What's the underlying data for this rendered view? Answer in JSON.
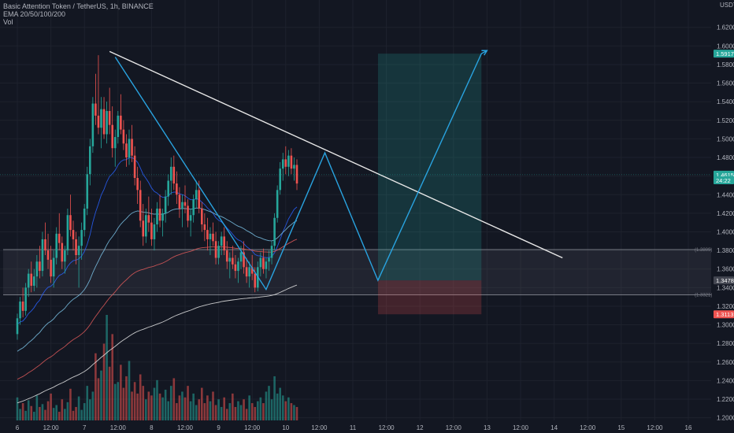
{
  "legend": {
    "symbol_line": "Basic Attention Token / TetherUS, 1h, BINANCE",
    "ema_line": "EMA 20/50/100/200",
    "vol_line": "Vol"
  },
  "chart_data": {
    "type": "candlestick",
    "currency_label": "USDT",
    "y_range": [
      1.1836,
      1.6494
    ],
    "y_ticks": [
      "1.6200",
      "1.6000",
      "1.5800",
      "1.5600",
      "1.5400",
      "1.5200",
      "1.5000",
      "1.4800",
      "1.4600",
      "1.4400",
      "1.4200",
      "1.4000",
      "1.3800",
      "1.3600",
      "1.3400",
      "1.3200",
      "1.3000",
      "1.2800",
      "1.2600",
      "1.2400",
      "1.2200",
      "1.2000"
    ],
    "x_ticks": [
      {
        "label": "6",
        "t": 0
      },
      {
        "label": "12:00",
        "t": 12
      },
      {
        "label": "7",
        "t": 24
      },
      {
        "label": "12:00",
        "t": 36
      },
      {
        "label": "8",
        "t": 48
      },
      {
        "label": "12:00",
        "t": 60
      },
      {
        "label": "9",
        "t": 72
      },
      {
        "label": "12:00",
        "t": 84
      },
      {
        "label": "10",
        "t": 96
      },
      {
        "label": "12:00",
        "t": 108
      },
      {
        "label": "11",
        "t": 120
      },
      {
        "label": "12:00",
        "t": 132
      },
      {
        "label": "12",
        "t": 144
      },
      {
        "label": "12:00",
        "t": 156
      },
      {
        "label": "13",
        "t": 168
      },
      {
        "label": "12:00",
        "t": 180
      },
      {
        "label": "14",
        "t": 192
      },
      {
        "label": "12:00",
        "t": 204
      },
      {
        "label": "15",
        "t": 216
      },
      {
        "label": "12:00",
        "t": 228
      },
      {
        "label": "16",
        "t": 240
      }
    ],
    "price_tags": [
      {
        "label": "1.5917",
        "value": 1.5917,
        "color": "#26a69a"
      },
      {
        "label": "1.4615",
        "value": 1.4615,
        "color": "#26a69a"
      },
      {
        "label": "24:22",
        "value": 1.4555,
        "color": "#26a69a"
      },
      {
        "label": "1.3478",
        "value": 1.3478,
        "color": "#434651"
      },
      {
        "label": "1.3113",
        "value": 1.3113,
        "color": "#ef5350"
      }
    ],
    "zone_labels": [
      {
        "label": "(1.3809)",
        "value": 1.3809
      },
      {
        "label": "(1.3321)",
        "value": 1.3321
      }
    ],
    "support_zone": {
      "top": 1.3809,
      "bottom": 1.3321
    },
    "position": {
      "t_start": 129,
      "t_end": 166,
      "target": 1.5917,
      "entry": 1.3478,
      "stop": 1.3113
    },
    "trendline": [
      {
        "t": 33,
        "p": 1.594
      },
      {
        "t": 195,
        "p": 1.372
      }
    ],
    "projection": [
      {
        "t": 35,
        "p": 1.588
      },
      {
        "t": 89,
        "p": 1.338
      },
      {
        "t": 110,
        "p": 1.485
      },
      {
        "t": 129,
        "p": 1.3478
      },
      {
        "t": 166,
        "p": 1.5917
      },
      {
        "t": 168,
        "p": 1.595
      }
    ],
    "candles": [
      [
        1.29,
        1.312,
        1.284,
        1.307
      ],
      [
        1.307,
        1.33,
        1.3,
        1.325
      ],
      [
        1.325,
        1.34,
        1.308,
        1.315
      ],
      [
        1.315,
        1.345,
        1.31,
        1.34
      ],
      [
        1.34,
        1.36,
        1.33,
        1.355
      ],
      [
        1.355,
        1.368,
        1.335,
        1.342
      ],
      [
        1.342,
        1.36,
        1.336,
        1.352
      ],
      [
        1.352,
        1.375,
        1.34,
        1.368
      ],
      [
        1.368,
        1.385,
        1.35,
        1.358
      ],
      [
        1.358,
        1.4,
        1.352,
        1.392
      ],
      [
        1.392,
        1.41,
        1.375,
        1.38
      ],
      [
        1.38,
        1.398,
        1.36,
        1.37
      ],
      [
        1.37,
        1.385,
        1.345,
        1.352
      ],
      [
        1.352,
        1.38,
        1.34,
        1.372
      ],
      [
        1.372,
        1.405,
        1.365,
        1.398
      ],
      [
        1.398,
        1.42,
        1.38,
        1.388
      ],
      [
        1.388,
        1.395,
        1.36,
        1.368
      ],
      [
        1.368,
        1.385,
        1.355,
        1.38
      ],
      [
        1.38,
        1.425,
        1.375,
        1.418
      ],
      [
        1.418,
        1.44,
        1.395,
        1.402
      ],
      [
        1.402,
        1.412,
        1.38,
        1.392
      ],
      [
        1.392,
        1.4,
        1.365,
        1.375
      ],
      [
        1.375,
        1.395,
        1.34,
        1.385
      ],
      [
        1.385,
        1.41,
        1.37,
        1.402
      ],
      [
        1.402,
        1.43,
        1.395,
        1.425
      ],
      [
        1.425,
        1.47,
        1.418,
        1.462
      ],
      [
        1.462,
        1.5,
        1.45,
        1.492
      ],
      [
        1.492,
        1.545,
        1.485,
        1.538
      ],
      [
        1.538,
        1.57,
        1.515,
        1.525
      ],
      [
        1.525,
        1.59,
        1.505,
        1.512
      ],
      [
        1.512,
        1.545,
        1.49,
        1.532
      ],
      [
        1.532,
        1.545,
        1.5,
        1.505
      ],
      [
        1.505,
        1.54,
        1.495,
        1.53
      ],
      [
        1.53,
        1.555,
        1.505,
        1.515
      ],
      [
        1.515,
        1.535,
        1.48,
        1.49
      ],
      [
        1.49,
        1.51,
        1.47,
        1.502
      ],
      [
        1.502,
        1.53,
        1.495,
        1.525
      ],
      [
        1.525,
        1.548,
        1.505,
        1.51
      ],
      [
        1.51,
        1.52,
        1.488,
        1.495
      ],
      [
        1.495,
        1.505,
        1.47,
        1.48
      ],
      [
        1.48,
        1.51,
        1.472,
        1.5
      ],
      [
        1.5,
        1.515,
        1.475,
        1.482
      ],
      [
        1.482,
        1.492,
        1.45,
        1.458
      ],
      [
        1.458,
        1.47,
        1.43,
        1.445
      ],
      [
        1.445,
        1.455,
        1.405,
        1.412
      ],
      [
        1.412,
        1.43,
        1.385,
        1.395
      ],
      [
        1.395,
        1.425,
        1.388,
        1.418
      ],
      [
        1.418,
        1.438,
        1.4,
        1.41
      ],
      [
        1.41,
        1.425,
        1.385,
        1.392
      ],
      [
        1.392,
        1.415,
        1.38,
        1.408
      ],
      [
        1.408,
        1.432,
        1.4,
        1.425
      ],
      [
        1.425,
        1.44,
        1.405,
        1.412
      ],
      [
        1.412,
        1.425,
        1.395,
        1.42
      ],
      [
        1.42,
        1.445,
        1.41,
        1.438
      ],
      [
        1.438,
        1.462,
        1.428,
        1.455
      ],
      [
        1.455,
        1.48,
        1.44,
        1.47
      ],
      [
        1.47,
        1.482,
        1.445,
        1.452
      ],
      [
        1.452,
        1.465,
        1.43,
        1.44
      ],
      [
        1.44,
        1.448,
        1.415,
        1.425
      ],
      [
        1.425,
        1.44,
        1.405,
        1.432
      ],
      [
        1.432,
        1.45,
        1.42,
        1.428
      ],
      [
        1.428,
        1.435,
        1.405,
        1.412
      ],
      [
        1.412,
        1.425,
        1.395,
        1.418
      ],
      [
        1.418,
        1.44,
        1.41,
        1.435
      ],
      [
        1.435,
        1.455,
        1.425,
        1.445
      ],
      [
        1.445,
        1.455,
        1.42,
        1.425
      ],
      [
        1.425,
        1.432,
        1.4,
        1.408
      ],
      [
        1.408,
        1.42,
        1.39,
        1.402
      ],
      [
        1.402,
        1.415,
        1.38,
        1.392
      ],
      [
        1.392,
        1.405,
        1.375,
        1.398
      ],
      [
        1.398,
        1.41,
        1.385,
        1.39
      ],
      [
        1.39,
        1.4,
        1.365,
        1.372
      ],
      [
        1.372,
        1.39,
        1.365,
        1.385
      ],
      [
        1.385,
        1.4,
        1.375,
        1.395
      ],
      [
        1.395,
        1.405,
        1.375,
        1.38
      ],
      [
        1.38,
        1.39,
        1.36,
        1.368
      ],
      [
        1.368,
        1.378,
        1.35,
        1.372
      ],
      [
        1.372,
        1.385,
        1.36,
        1.365
      ],
      [
        1.365,
        1.375,
        1.35,
        1.358
      ],
      [
        1.358,
        1.372,
        1.345,
        1.368
      ],
      [
        1.368,
        1.385,
        1.36,
        1.378
      ],
      [
        1.378,
        1.39,
        1.355,
        1.362
      ],
      [
        1.362,
        1.372,
        1.345,
        1.352
      ],
      [
        1.352,
        1.368,
        1.34,
        1.362
      ],
      [
        1.362,
        1.375,
        1.348,
        1.355
      ],
      [
        1.355,
        1.362,
        1.335,
        1.34
      ],
      [
        1.34,
        1.368,
        1.336,
        1.362
      ],
      [
        1.362,
        1.378,
        1.352,
        1.372
      ],
      [
        1.372,
        1.382,
        1.355,
        1.36
      ],
      [
        1.36,
        1.372,
        1.35,
        1.368
      ],
      [
        1.368,
        1.38,
        1.358,
        1.372
      ],
      [
        1.372,
        1.39,
        1.365,
        1.385
      ],
      [
        1.385,
        1.42,
        1.38,
        1.415
      ],
      [
        1.415,
        1.45,
        1.41,
        1.445
      ],
      [
        1.445,
        1.475,
        1.44,
        1.468
      ],
      [
        1.468,
        1.485,
        1.455,
        1.478
      ],
      [
        1.478,
        1.492,
        1.462,
        1.47
      ],
      [
        1.47,
        1.488,
        1.46,
        1.482
      ],
      [
        1.482,
        1.49,
        1.462,
        1.468
      ],
      [
        1.468,
        1.48,
        1.455,
        1.472
      ],
      [
        1.472,
        1.478,
        1.445,
        1.452
      ]
    ],
    "volume": [
      24,
      12,
      18,
      10,
      21,
      15,
      9,
      26,
      14,
      17,
      11,
      20,
      28,
      13,
      16,
      9,
      22,
      12,
      19,
      33,
      10,
      14,
      25,
      11,
      18,
      36,
      22,
      30,
      70,
      44,
      52,
      80,
      110,
      56,
      90,
      38,
      40,
      58,
      34,
      46,
      62,
      30,
      40,
      28,
      48,
      36,
      22,
      30,
      26,
      34,
      42,
      28,
      24,
      32,
      20,
      36,
      44,
      18,
      26,
      30,
      24,
      36,
      20,
      28,
      16,
      22,
      34,
      18,
      26,
      20,
      30,
      16,
      22,
      14,
      24,
      12,
      18,
      28,
      14,
      20,
      16,
      22,
      12,
      26,
      18,
      14,
      20,
      24,
      18,
      30,
      36,
      22,
      46,
      28,
      34,
      26,
      20,
      24,
      18,
      16,
      14
    ],
    "ema_colors": {
      "ema20": "#2962ff",
      "ema50": "#7cc4e8",
      "ema100": "#e05a5a",
      "ema200": "#e8e8e8"
    }
  }
}
